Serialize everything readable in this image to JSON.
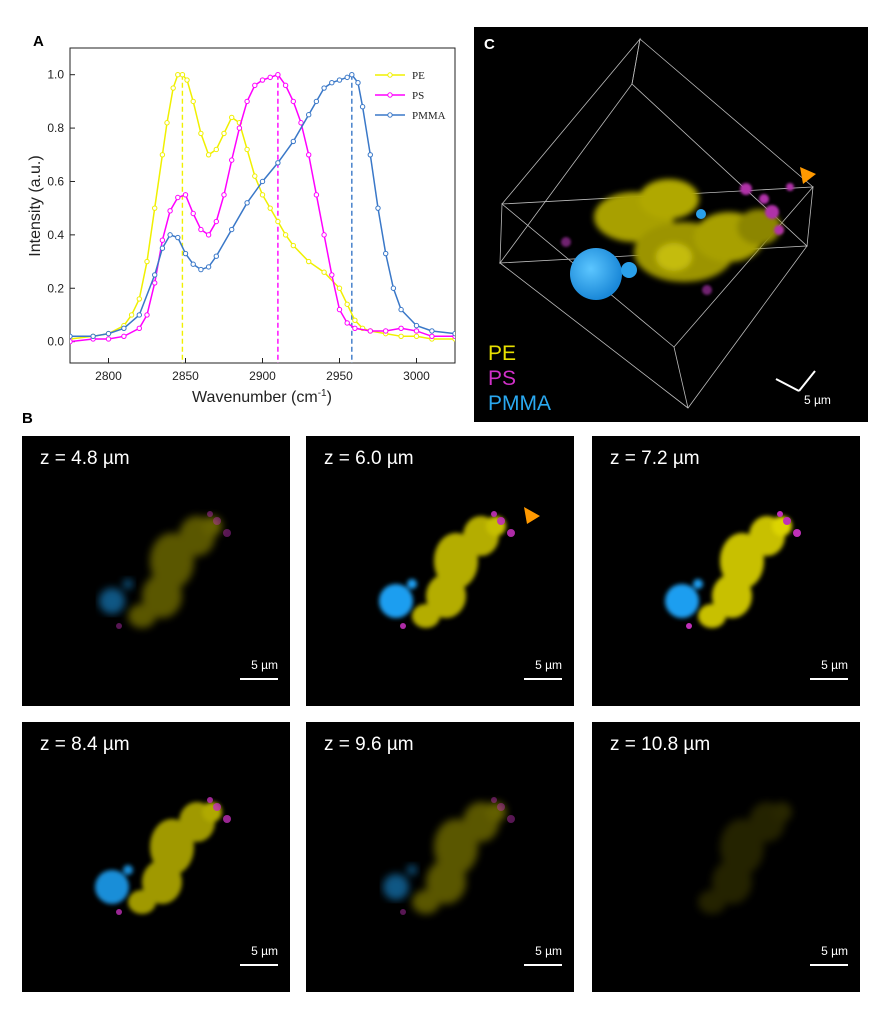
{
  "figure": {
    "panel_labels": [
      "A",
      "B",
      "C"
    ]
  },
  "chart_data": {
    "type": "line",
    "xlabel": "Wavenumber (cm",
    "xlabel_superscript": "-1",
    "xlabel_suffix": ")",
    "ylabel": "Intensity (a.u.)",
    "xlim": [
      2775,
      3025
    ],
    "ylim": [
      -0.08,
      1.1
    ],
    "x_ticks": [
      "2800",
      "2850",
      "2900",
      "2950",
      "3000"
    ],
    "y_ticks": [
      "0.0",
      "0.2",
      "0.4",
      "0.6",
      "0.8",
      "1.0"
    ],
    "legend_position": "top-right",
    "series": [
      {
        "name": "PE",
        "color": "#f0f000",
        "peak_marker": 2848,
        "x": [
          2775,
          2790,
          2800,
          2810,
          2815,
          2820,
          2825,
          2830,
          2835,
          2838,
          2842,
          2845,
          2848,
          2851,
          2855,
          2860,
          2865,
          2870,
          2875,
          2880,
          2885,
          2890,
          2895,
          2900,
          2905,
          2910,
          2915,
          2920,
          2930,
          2940,
          2950,
          2955,
          2960,
          2965,
          2970,
          2980,
          2990,
          3000,
          3010,
          3025
        ],
        "y": [
          0.01,
          0.02,
          0.03,
          0.06,
          0.1,
          0.16,
          0.3,
          0.5,
          0.7,
          0.82,
          0.95,
          1.0,
          1.0,
          0.98,
          0.9,
          0.78,
          0.7,
          0.72,
          0.78,
          0.84,
          0.82,
          0.72,
          0.62,
          0.55,
          0.5,
          0.45,
          0.4,
          0.36,
          0.3,
          0.26,
          0.2,
          0.14,
          0.08,
          0.05,
          0.04,
          0.03,
          0.02,
          0.02,
          0.01,
          0.01
        ]
      },
      {
        "name": "PS",
        "color": "#ff00ff",
        "peak_marker": 2910,
        "x": [
          2775,
          2790,
          2800,
          2810,
          2820,
          2825,
          2830,
          2835,
          2840,
          2845,
          2850,
          2855,
          2860,
          2865,
          2870,
          2875,
          2880,
          2885,
          2890,
          2895,
          2900,
          2905,
          2910,
          2915,
          2920,
          2925,
          2930,
          2935,
          2940,
          2945,
          2950,
          2955,
          2960,
          2970,
          2980,
          2990,
          3000,
          3010,
          3025
        ],
        "y": [
          0.0,
          0.01,
          0.01,
          0.02,
          0.05,
          0.1,
          0.22,
          0.38,
          0.49,
          0.54,
          0.55,
          0.48,
          0.42,
          0.4,
          0.45,
          0.55,
          0.68,
          0.8,
          0.9,
          0.96,
          0.98,
          0.99,
          1.0,
          0.96,
          0.9,
          0.82,
          0.7,
          0.55,
          0.4,
          0.25,
          0.12,
          0.07,
          0.05,
          0.04,
          0.04,
          0.05,
          0.04,
          0.02,
          0.02
        ]
      },
      {
        "name": "PMMA",
        "color": "#3a78c8",
        "peak_marker": 2958,
        "x": [
          2775,
          2790,
          2800,
          2810,
          2820,
          2830,
          2835,
          2840,
          2845,
          2850,
          2855,
          2860,
          2865,
          2870,
          2880,
          2890,
          2900,
          2910,
          2920,
          2930,
          2935,
          2940,
          2945,
          2950,
          2955,
          2958,
          2962,
          2965,
          2970,
          2975,
          2980,
          2985,
          2990,
          3000,
          3010,
          3025
        ],
        "y": [
          0.02,
          0.02,
          0.03,
          0.05,
          0.1,
          0.25,
          0.35,
          0.4,
          0.39,
          0.33,
          0.29,
          0.27,
          0.28,
          0.32,
          0.42,
          0.52,
          0.6,
          0.67,
          0.75,
          0.85,
          0.9,
          0.95,
          0.97,
          0.98,
          0.99,
          1.0,
          0.97,
          0.88,
          0.7,
          0.5,
          0.33,
          0.2,
          0.12,
          0.06,
          0.04,
          0.03
        ]
      }
    ]
  },
  "panel_c": {
    "legend": [
      {
        "label": "PE",
        "color": "#e8e000"
      },
      {
        "label": "PS",
        "color": "#d030c8"
      },
      {
        "label": "PMMA",
        "color": "#2aa8f0"
      }
    ],
    "scale_label": "5 µm",
    "arrow_color": "#ff9900"
  },
  "panel_b": {
    "scale_label": "5 µm",
    "arrow_color": "#ff9900",
    "slices": [
      {
        "z_label": "z = 4.8 µm",
        "intensity": 0.45,
        "arrow": false
      },
      {
        "z_label": "z = 6.0 µm",
        "intensity": 0.9,
        "arrow": true
      },
      {
        "z_label": "z = 7.2 µm",
        "intensity": 1.0,
        "arrow": false
      },
      {
        "z_label": "z = 8.4 µm",
        "intensity": 0.8,
        "arrow": false
      },
      {
        "z_label": "z = 9.6 µm",
        "intensity": 0.45,
        "arrow": false
      },
      {
        "z_label": "z = 10.8 µm",
        "intensity": 0.18,
        "arrow": false
      }
    ]
  }
}
